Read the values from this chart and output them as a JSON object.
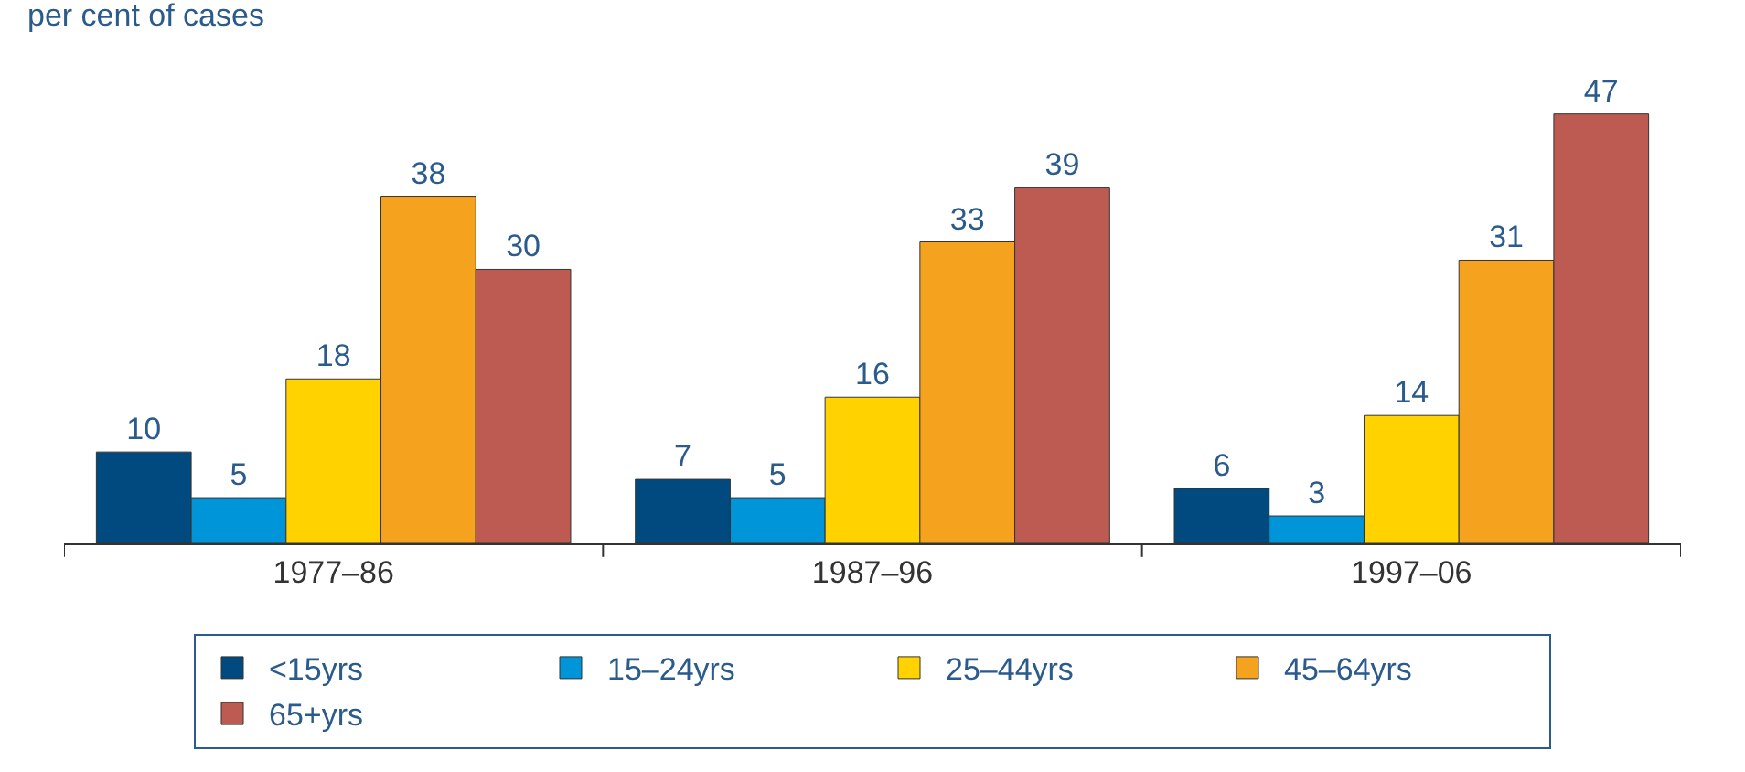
{
  "chart_data": {
    "type": "bar",
    "ylabel": "per cent of cases",
    "categories": [
      "1977–86",
      "1987–96",
      "1997–06"
    ],
    "series": [
      {
        "name": "<15yrs",
        "color": "#004a80",
        "values": [
          10,
          7,
          6
        ]
      },
      {
        "name": "15–24yrs",
        "color": "#0095d9",
        "values": [
          5,
          5,
          3
        ]
      },
      {
        "name": "25–44yrs",
        "color": "#ffd200",
        "values": [
          18,
          16,
          14
        ]
      },
      {
        "name": "45–64yrs",
        "color": "#f5a31f",
        "values": [
          38,
          33,
          31
        ]
      },
      {
        "name": "65+yrs",
        "color": "#bd5b52",
        "values": [
          30,
          39,
          47
        ]
      }
    ],
    "data_labels": true,
    "legend": "bottom"
  }
}
